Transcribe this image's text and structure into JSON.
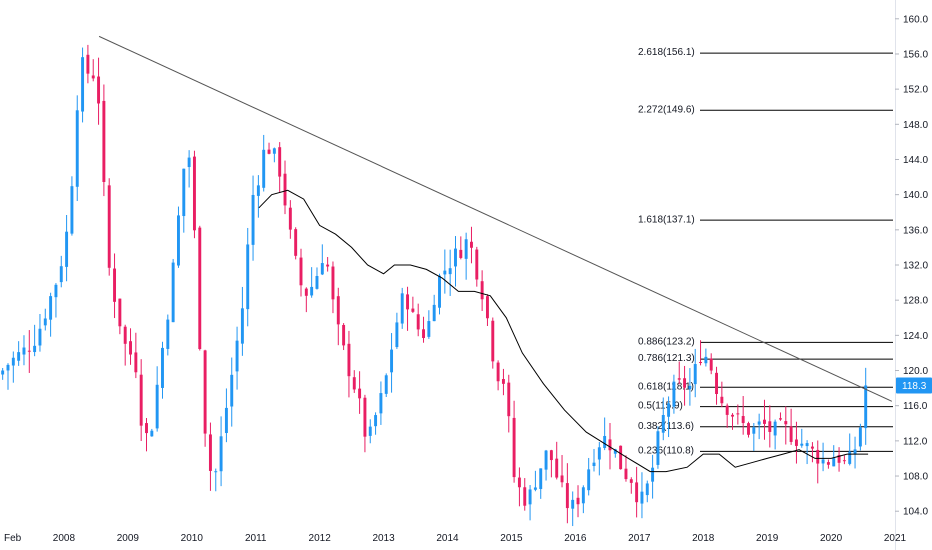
{
  "chart_data": {
    "type": "candlestick",
    "colors": {
      "up": "#2196f3",
      "down": "#e91e63",
      "trendline": "#555555",
      "moving_average": "#000000",
      "fib_line": "#000000",
      "price_tag": "#2196f3",
      "axis_text": "#131722"
    },
    "y_axis": {
      "range": [
        103,
        161
      ],
      "ticks": [
        "104.0",
        "108.0",
        "112.0",
        "116.0",
        "120.0",
        "124.0",
        "128.0",
        "132.0",
        "136.0",
        "140.0",
        "144.0",
        "148.0",
        "152.0",
        "156.0",
        "160.0"
      ]
    },
    "x_axis": {
      "range": [
        2007.0,
        2021.0
      ],
      "ticks": [
        {
          "label": "Feb",
          "x": 2007.08
        },
        {
          "label": "2008",
          "x": 2008.0
        },
        {
          "label": "2009",
          "x": 2009.0
        },
        {
          "label": "2010",
          "x": 2010.0
        },
        {
          "label": "2011",
          "x": 2011.0
        },
        {
          "label": "2012",
          "x": 2012.0
        },
        {
          "label": "2013",
          "x": 2013.0
        },
        {
          "label": "2014",
          "x": 2014.0
        },
        {
          "label": "2015",
          "x": 2015.0
        },
        {
          "label": "2016",
          "x": 2016.0
        },
        {
          "label": "2017",
          "x": 2017.0
        },
        {
          "label": "2018",
          "x": 2018.0
        },
        {
          "label": "2019",
          "x": 2019.0
        },
        {
          "label": "2020",
          "x": 2020.0
        },
        {
          "label": "2021",
          "x": 2021.0
        }
      ]
    },
    "price_anchors": [
      [
        2007.0,
        119.5
      ],
      [
        2007.08,
        120.5
      ],
      [
        2007.25,
        121.5
      ],
      [
        2007.42,
        122.5
      ],
      [
        2007.58,
        124.0
      ],
      [
        2007.75,
        127.5
      ],
      [
        2007.92,
        131.0
      ],
      [
        2008.08,
        137.0
      ],
      [
        2008.25,
        155.0
      ],
      [
        2008.42,
        153.5
      ],
      [
        2008.5,
        154.0
      ],
      [
        2008.58,
        148.0
      ],
      [
        2008.67,
        133.0
      ],
      [
        2008.83,
        127.0
      ],
      [
        2009.0,
        121.5
      ],
      [
        2009.1,
        122.5
      ],
      [
        2009.2,
        115.0
      ],
      [
        2009.33,
        111.5
      ],
      [
        2009.5,
        120.5
      ],
      [
        2009.67,
        129.0
      ],
      [
        2009.83,
        140.0
      ],
      [
        2009.92,
        146.0
      ],
      [
        2010.0,
        142.5
      ],
      [
        2010.08,
        129.0
      ],
      [
        2010.2,
        114.0
      ],
      [
        2010.33,
        106.5
      ],
      [
        2010.5,
        114.0
      ],
      [
        2010.67,
        121.5
      ],
      [
        2010.83,
        129.0
      ],
      [
        2010.92,
        139.0
      ],
      [
        2011.08,
        143.0
      ],
      [
        2011.17,
        146.5
      ],
      [
        2011.25,
        144.0
      ],
      [
        2011.33,
        144.5
      ],
      [
        2011.42,
        141.0
      ],
      [
        2011.58,
        133.5
      ],
      [
        2011.75,
        128.5
      ],
      [
        2011.92,
        130.0
      ],
      [
        2012.08,
        134.0
      ],
      [
        2012.25,
        125.5
      ],
      [
        2012.42,
        121.0
      ],
      [
        2012.58,
        117.5
      ],
      [
        2012.75,
        111.5
      ],
      [
        2012.92,
        116.0
      ],
      [
        2013.0,
        117.5
      ],
      [
        2013.17,
        124.5
      ],
      [
        2013.33,
        129.0
      ],
      [
        2013.5,
        125.0
      ],
      [
        2013.67,
        124.0
      ],
      [
        2013.83,
        130.0
      ],
      [
        2014.0,
        132.0
      ],
      [
        2014.17,
        133.5
      ],
      [
        2014.33,
        135.0
      ],
      [
        2014.42,
        132.5
      ],
      [
        2014.58,
        128.0
      ],
      [
        2014.75,
        120.0
      ],
      [
        2014.92,
        118.5
      ],
      [
        2015.0,
        109.0
      ],
      [
        2015.08,
        107.0
      ],
      [
        2015.25,
        105.0
      ],
      [
        2015.42,
        108.5
      ],
      [
        2015.58,
        111.0
      ],
      [
        2015.75,
        107.0
      ],
      [
        2015.92,
        104.0
      ],
      [
        2016.08,
        106.0
      ],
      [
        2016.25,
        110.0
      ],
      [
        2016.42,
        112.5
      ],
      [
        2016.58,
        111.5
      ],
      [
        2016.75,
        108.5
      ],
      [
        2016.92,
        107.5
      ],
      [
        2017.0,
        104.5
      ],
      [
        2017.17,
        107.5
      ],
      [
        2017.33,
        113.5
      ],
      [
        2017.5,
        117.5
      ],
      [
        2017.67,
        118.5
      ],
      [
        2017.83,
        118.0
      ],
      [
        2017.92,
        122.0
      ],
      [
        2018.08,
        121.5
      ],
      [
        2018.25,
        117.0
      ],
      [
        2018.42,
        115.5
      ],
      [
        2018.58,
        114.0
      ],
      [
        2018.75,
        113.0
      ],
      [
        2018.92,
        114.0
      ],
      [
        2019.08,
        113.0
      ],
      [
        2019.25,
        113.5
      ],
      [
        2019.42,
        112.5
      ],
      [
        2019.58,
        111.5
      ],
      [
        2019.75,
        110.5
      ],
      [
        2019.92,
        109.5
      ],
      [
        2020.08,
        110.5
      ],
      [
        2020.25,
        109.0
      ],
      [
        2020.42,
        112.0
      ],
      [
        2020.5,
        115.5
      ],
      [
        2020.58,
        118.3
      ]
    ],
    "moving_average": [
      [
        2011.05,
        138.5
      ],
      [
        2011.25,
        140.0
      ],
      [
        2011.5,
        140.5
      ],
      [
        2011.75,
        139.5
      ],
      [
        2012.0,
        136.5
      ],
      [
        2012.25,
        135.5
      ],
      [
        2012.5,
        134.0
      ],
      [
        2012.75,
        132.0
      ],
      [
        2013.0,
        131.0
      ],
      [
        2013.17,
        132.0
      ],
      [
        2013.42,
        132.0
      ],
      [
        2013.67,
        131.5
      ],
      [
        2013.92,
        130.5
      ],
      [
        2014.17,
        129.0
      ],
      [
        2014.42,
        129.0
      ],
      [
        2014.67,
        128.5
      ],
      [
        2014.92,
        126.0
      ],
      [
        2015.17,
        122.0
      ],
      [
        2015.5,
        118.5
      ],
      [
        2015.83,
        115.5
      ],
      [
        2016.17,
        113.0
      ],
      [
        2016.5,
        111.5
      ],
      [
        2016.83,
        110.0
      ],
      [
        2017.17,
        108.5
      ],
      [
        2017.42,
        108.5
      ],
      [
        2017.75,
        109.0
      ],
      [
        2018.0,
        110.5
      ],
      [
        2018.25,
        110.5
      ],
      [
        2018.5,
        109.0
      ],
      [
        2018.75,
        109.5
      ],
      [
        2019.0,
        110.0
      ],
      [
        2019.25,
        110.5
      ],
      [
        2019.5,
        111.0
      ],
      [
        2019.75,
        110.0
      ],
      [
        2020.0,
        110.0
      ],
      [
        2020.25,
        110.5
      ],
      [
        2020.58,
        110.5
      ]
    ],
    "trendline": {
      "start": [
        2008.55,
        158.0
      ],
      "end": [
        2020.95,
        116.5
      ]
    },
    "fib_levels": [
      {
        "label": "2.618(156.1)",
        "value": 156.1,
        "x_start": 2016.2,
        "text_full": true
      },
      {
        "label": "2.272(149.6)",
        "value": 149.6,
        "x_start": 2016.2,
        "text_full": true
      },
      {
        "label": "1.618(137.1)",
        "value": 137.1,
        "x_start": 2016.2,
        "text_full": true
      },
      {
        "label": "0.886(123.2)",
        "value": 123.2,
        "x_start": 2016.2,
        "text_full": true
      },
      {
        "label": "0.786(121.3)",
        "value": 121.3,
        "x_start": 2016.2,
        "text_full": true
      },
      {
        "label": "0.618(118.1)",
        "value": 118.1,
        "x_start": 2016.2,
        "text_full": false
      },
      {
        "label": "0.5(115.9)",
        "value": 115.9,
        "x_start": 2016.2,
        "text_full": false
      },
      {
        "label": "0.382(113.6)",
        "value": 113.6,
        "x_start": 2016.2,
        "text_full": false
      },
      {
        "label": "0.236(110.8)",
        "value": 110.8,
        "x_start": 2016.2,
        "text_full": true
      }
    ],
    "fib_labels_visible": [
      "2.618(156.1)",
      "2.272(149.6)",
      "1.618(137.1)",
      "0.886(123.2)",
      "0.786(121.3)",
      "0.61",
      "1)",
      "0.",
      "(115.9)",
      "0.3",
      "(113.6)",
      "0.236(110.8)"
    ],
    "last_price_tag": "118.3"
  }
}
